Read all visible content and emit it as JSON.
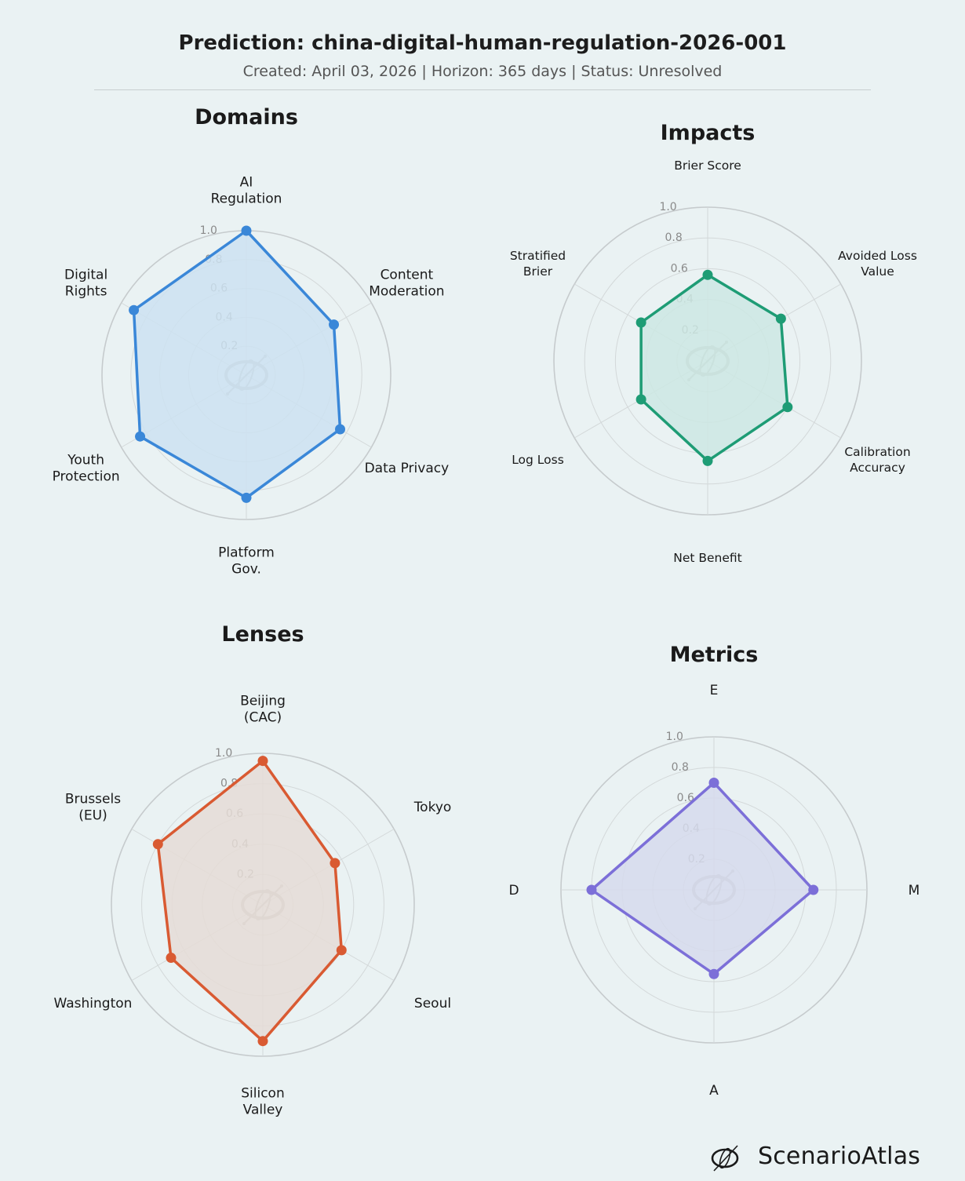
{
  "header": {
    "title": "Prediction: china-digital-human-regulation-2026-001",
    "subtitle": "Created: April 03, 2026  |  Horizon: 365 days  |  Status: Unresolved"
  },
  "brand": {
    "name": "ScenarioAtlas",
    "logo_icon": "atlas-logo-icon"
  },
  "chart_data": [
    {
      "type": "radar",
      "title": "Domains",
      "color": "#3a87d8",
      "fill": "#cde2f1",
      "categories": [
        "AI\nRegulation",
        "Content\nModeration",
        "Data Privacy",
        "Platform\nGov.",
        "Youth\nProtection",
        "Digital\nRights"
      ],
      "values": [
        1.0,
        0.7,
        0.75,
        0.85,
        0.85,
        0.9
      ],
      "rlim": [
        0,
        1.0
      ],
      "rticks": [
        0.2,
        0.4,
        0.6,
        0.8,
        1.0
      ],
      "rtick_labels": [
        "0.2",
        "0.4",
        "0.6",
        "0.8",
        "1.0"
      ]
    },
    {
      "type": "radar",
      "title": "Impacts",
      "color": "#1e9c75",
      "fill": "#cce8e3",
      "categories": [
        "Brier Score",
        "Avoided Loss\nValue",
        "Calibration\nAccuracy",
        "Net Benefit",
        "Log Loss",
        "Stratified\nBrier"
      ],
      "values": [
        0.56,
        0.55,
        0.6,
        0.65,
        0.5,
        0.5
      ],
      "rlim": [
        0,
        1.0
      ],
      "rticks": [
        0.2,
        0.4,
        0.6,
        0.8,
        1.0
      ],
      "rtick_labels": [
        "0.2",
        "0.4",
        "0.6",
        "0.8",
        "1.0"
      ]
    },
    {
      "type": "radar",
      "title": "Lenses",
      "color": "#d95a32",
      "fill": "#e5dcd6",
      "categories": [
        "Beijing\n(CAC)",
        "Tokyo",
        "Seoul",
        "Silicon\nValley",
        "Washington",
        "Brussels\n(EU)"
      ],
      "values": [
        0.95,
        0.55,
        0.6,
        0.9,
        0.7,
        0.8
      ],
      "rlim": [
        0,
        1.0
      ],
      "rticks": [
        0.2,
        0.4,
        0.6,
        0.8,
        1.0
      ],
      "rtick_labels": [
        "0.2",
        "0.4",
        "0.6",
        "0.8",
        "1.0"
      ]
    },
    {
      "type": "radar",
      "title": "Metrics",
      "color": "#7c6fd8",
      "fill": "#d6daec",
      "categories": [
        "E",
        "M",
        "A",
        "D"
      ],
      "values": [
        0.7,
        0.65,
        0.55,
        0.8
      ],
      "rlim": [
        0,
        1.0
      ],
      "rticks": [
        0.2,
        0.4,
        0.6,
        0.8,
        1.0
      ],
      "rtick_labels": [
        "0.2",
        "0.4",
        "0.6",
        "0.8",
        "1.0"
      ]
    }
  ]
}
